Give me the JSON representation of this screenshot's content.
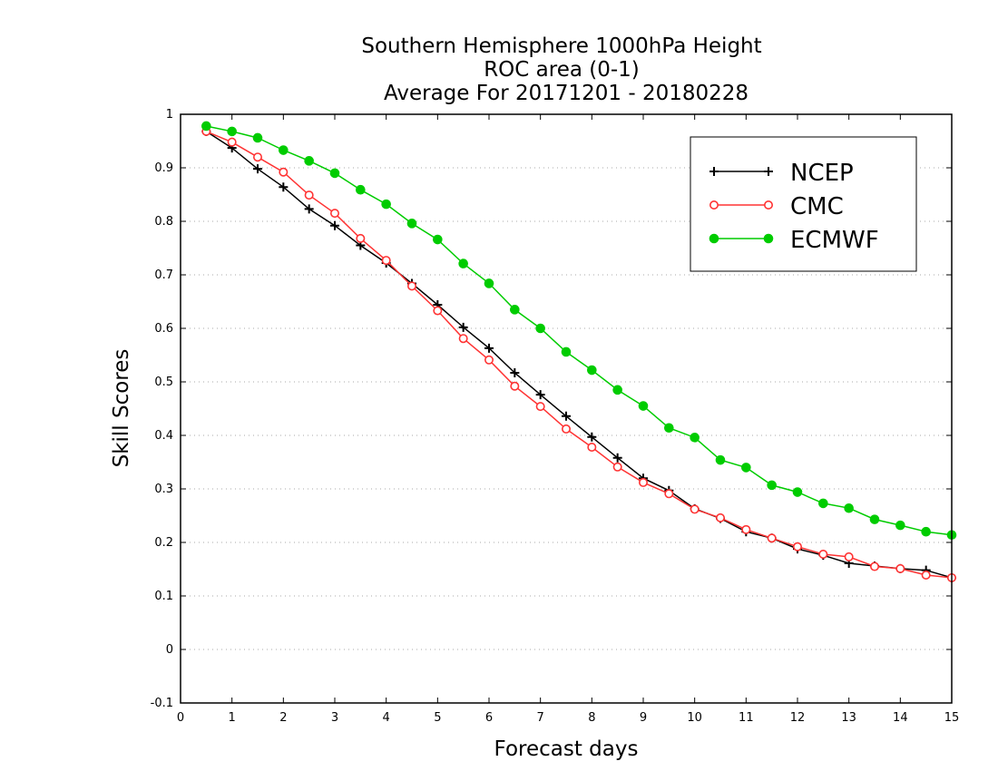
{
  "chart_data": {
    "type": "line",
    "title": [
      "Southern Hemisphere 1000hPa Height",
      "ROC area (0-1)",
      "Average For 20171201 - 20180228"
    ],
    "xlabel": "Forecast days",
    "ylabel": "Skill Scores",
    "xlim": [
      0,
      15
    ],
    "ylim": [
      -0.1,
      1
    ],
    "x_ticks": [
      "0",
      "1",
      "2",
      "3",
      "4",
      "5",
      "6",
      "7",
      "8",
      "9",
      "10",
      "11",
      "12",
      "13",
      "14",
      "15"
    ],
    "y_ticks": [
      "-0.1",
      "0",
      "0.1",
      "0.2",
      "0.3",
      "0.4",
      "0.5",
      "0.6",
      "0.7",
      "0.8",
      "0.9",
      "1"
    ],
    "grid": "dotted horizontal",
    "legend_position": "top-right",
    "x": [
      0.5,
      1,
      1.5,
      2,
      2.5,
      3,
      3.5,
      4,
      4.5,
      5,
      5.5,
      6,
      6.5,
      7,
      7.5,
      8,
      8.5,
      9,
      9.5,
      10,
      10.5,
      11,
      11.5,
      12,
      12.5,
      13,
      13.5,
      14,
      14.5,
      15
    ],
    "series": [
      {
        "name": "NCEP",
        "color": "#000000",
        "marker": "plus",
        "values": [
          0.968,
          0.937,
          0.898,
          0.864,
          0.823,
          0.792,
          0.755,
          0.722,
          0.684,
          0.644,
          0.602,
          0.563,
          0.517,
          0.476,
          0.436,
          0.397,
          0.358,
          0.32,
          0.297,
          0.263,
          0.245,
          0.22,
          0.208,
          0.188,
          0.176,
          0.161,
          0.156,
          0.151,
          0.148,
          0.134
        ]
      },
      {
        "name": "CMC",
        "color": "#ff3333",
        "marker": "open-circle",
        "values": [
          0.968,
          0.948,
          0.92,
          0.892,
          0.849,
          0.815,
          0.768,
          0.727,
          0.679,
          0.633,
          0.581,
          0.541,
          0.492,
          0.454,
          0.412,
          0.378,
          0.341,
          0.312,
          0.291,
          0.262,
          0.246,
          0.224,
          0.208,
          0.192,
          0.178,
          0.173,
          0.155,
          0.151,
          0.139,
          0.134
        ]
      },
      {
        "name": "ECMWF",
        "color": "#00cc00",
        "marker": "filled-circle",
        "values": [
          0.978,
          0.968,
          0.956,
          0.933,
          0.913,
          0.89,
          0.859,
          0.832,
          0.796,
          0.766,
          0.721,
          0.684,
          0.635,
          0.6,
          0.556,
          0.522,
          0.485,
          0.455,
          0.414,
          0.396,
          0.354,
          0.34,
          0.307,
          0.294,
          0.273,
          0.264,
          0.243,
          0.232,
          0.22,
          0.214
        ]
      }
    ]
  }
}
